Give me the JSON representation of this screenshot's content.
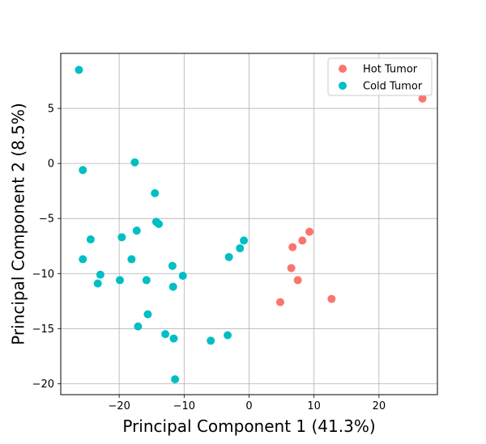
{
  "chart_data": {
    "type": "scatter",
    "title": "",
    "xlabel": "Principal Component 1 (41.3%)",
    "ylabel": "Principal Component 2 (8.5%)",
    "xlim": [
      -29,
      29
    ],
    "ylim": [
      -21,
      10
    ],
    "xticks": [
      -20,
      -10,
      0,
      10,
      20
    ],
    "yticks": [
      -20,
      -15,
      -10,
      -5,
      0,
      5
    ],
    "xtick_labels": [
      "−20",
      "−10",
      "0",
      "10",
      "20"
    ],
    "ytick_labels": [
      "−20",
      "−15",
      "−10",
      "−5",
      "0",
      "5"
    ],
    "grid": true,
    "legend_position": "top-right",
    "series": [
      {
        "name": "Hot Tumor",
        "color": "#f8766d",
        "points": [
          [
            26.7,
            5.9
          ],
          [
            9.3,
            -6.2
          ],
          [
            8.2,
            -7.0
          ],
          [
            6.7,
            -7.6
          ],
          [
            6.5,
            -9.5
          ],
          [
            7.5,
            -10.6
          ],
          [
            4.8,
            -12.6
          ],
          [
            12.7,
            -12.3
          ]
        ]
      },
      {
        "name": "Cold Tumor",
        "color": "#00bfc4",
        "points": [
          [
            -26.2,
            8.5
          ],
          [
            -17.6,
            0.1
          ],
          [
            -25.6,
            -0.6
          ],
          [
            -14.5,
            -2.7
          ],
          [
            -14.3,
            -5.3
          ],
          [
            -13.9,
            -5.5
          ],
          [
            -17.3,
            -6.1
          ],
          [
            -24.4,
            -6.9
          ],
          [
            -19.6,
            -6.7
          ],
          [
            -25.6,
            -8.7
          ],
          [
            -18.1,
            -8.7
          ],
          [
            -11.8,
            -9.3
          ],
          [
            -22.9,
            -10.1
          ],
          [
            -23.3,
            -10.9
          ],
          [
            -19.9,
            -10.6
          ],
          [
            -15.8,
            -10.6
          ],
          [
            -10.2,
            -10.2
          ],
          [
            -11.7,
            -11.2
          ],
          [
            -15.6,
            -13.7
          ],
          [
            -17.1,
            -14.8
          ],
          [
            -12.9,
            -15.5
          ],
          [
            -11.6,
            -15.9
          ],
          [
            -11.4,
            -19.6
          ],
          [
            -5.9,
            -16.1
          ],
          [
            -3.3,
            -15.6
          ],
          [
            -1.4,
            -7.7
          ],
          [
            -0.8,
            -7.0
          ],
          [
            -3.1,
            -8.5
          ]
        ]
      }
    ]
  }
}
